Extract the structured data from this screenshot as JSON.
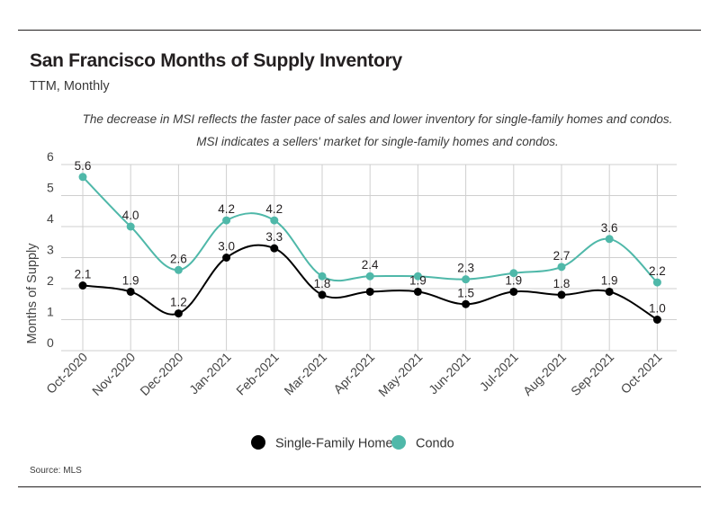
{
  "header": {
    "title": "San Francisco Months of Supply Inventory",
    "subtitle": "TTM, Monthly",
    "note_line1": "The decrease in MSI reflects the faster pace of sales and lower inventory for single-family homes and condos.",
    "note_line2": "MSI indicates a sellers' market for single-family homes and condos."
  },
  "footer": {
    "source": "Source:  MLS"
  },
  "colors": {
    "single_family": "#000000",
    "condo": "#4fb8a9",
    "grid": "#cfcfcf",
    "text": "#231f20"
  },
  "chart_data": {
    "type": "line",
    "title": "San Francisco Months of Supply Inventory",
    "subtitle": "TTM, Monthly",
    "ylabel": "Months of Supply",
    "xlabel": "",
    "ylim": [
      0,
      6
    ],
    "yticks": [
      0,
      1,
      2,
      3,
      4,
      5,
      6
    ],
    "grid": true,
    "legend_placement": "bottom-center",
    "categories": [
      "Oct-2020",
      "Nov-2020",
      "Dec-2020",
      "Jan-2021",
      "Feb-2021",
      "Mar-2021",
      "Apr-2021",
      "May-2021",
      "Jun-2021",
      "Jul-2021",
      "Aug-2021",
      "Sep-2021",
      "Oct-2021"
    ],
    "series": [
      {
        "name": "Single-Family Home",
        "color": "#000000",
        "values": [
          2.1,
          1.9,
          1.2,
          3.0,
          3.3,
          1.8,
          1.9,
          1.9,
          1.5,
          1.9,
          1.8,
          1.9,
          1.0
        ],
        "labels": [
          "2.1",
          "1.9",
          "1.2",
          "3.0",
          "3.3",
          "1.8",
          "",
          "1.9",
          "1.5",
          "1.9",
          "1.8",
          "1.9",
          "1.0"
        ]
      },
      {
        "name": "Condo",
        "color": "#4fb8a9",
        "values": [
          5.6,
          4.0,
          2.6,
          4.2,
          4.2,
          2.4,
          2.4,
          2.4,
          2.3,
          2.5,
          2.7,
          3.6,
          2.2
        ],
        "labels": [
          "5.6",
          "4.0",
          "2.6",
          "4.2",
          "4.2",
          "",
          "2.4",
          "",
          "2.3",
          "",
          "2.7",
          "3.6",
          "2.2"
        ]
      }
    ]
  }
}
